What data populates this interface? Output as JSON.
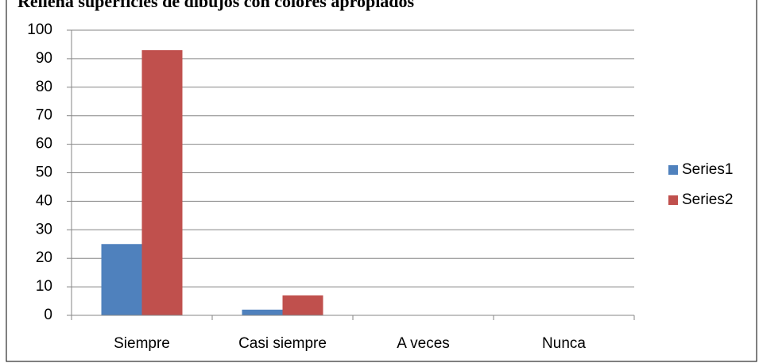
{
  "chart_data": {
    "type": "bar",
    "title": "Rellena superficies de dibujos con colores apropiados",
    "categories": [
      "Siempre",
      "Casi siempre",
      "A veces",
      "Nunca"
    ],
    "series": [
      {
        "name": "Series1",
        "color": "#4f81bd",
        "values": [
          25,
          2,
          0,
          0
        ]
      },
      {
        "name": "Series2",
        "color": "#c0504d",
        "values": [
          93,
          7,
          0,
          0
        ]
      }
    ],
    "ylim": [
      0,
      100
    ],
    "yticks": [
      0,
      10,
      20,
      30,
      40,
      50,
      60,
      70,
      80,
      90,
      100
    ],
    "grid": true,
    "legend": "right"
  }
}
